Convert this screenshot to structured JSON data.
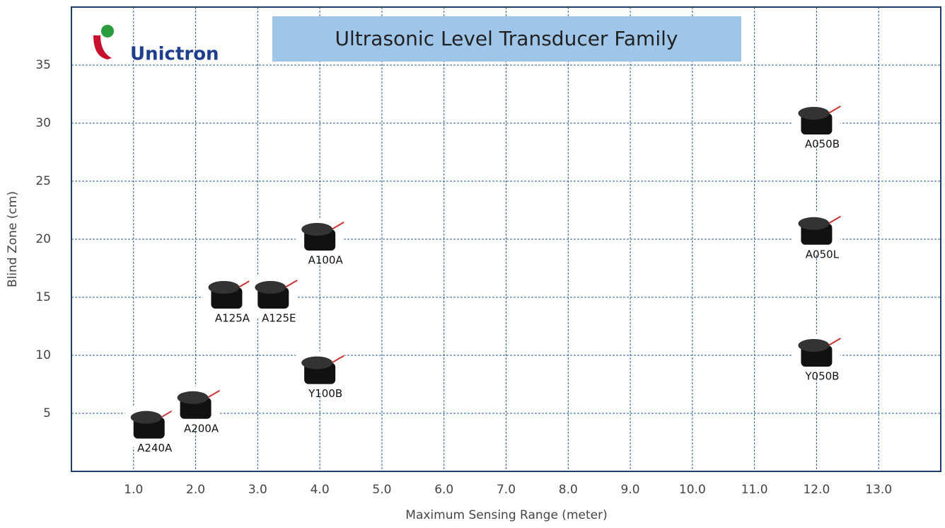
{
  "chart_data": {
    "type": "scatter",
    "title": "Ultrasonic Level Transducer Family",
    "logo": "Unictron",
    "x_label": "Maximum Sensing Range (meter)",
    "y_label": "Blind Zone (cm)",
    "xlim": [
      0,
      14
    ],
    "ylim": [
      0,
      40
    ],
    "xticks": [
      {
        "value": 1,
        "label": "1.0"
      },
      {
        "value": 2,
        "label": "2.0"
      },
      {
        "value": 3,
        "label": "3.0"
      },
      {
        "value": 4,
        "label": "4.0"
      },
      {
        "value": 5,
        "label": "5.0"
      },
      {
        "value": 6,
        "label": "6.0"
      },
      {
        "value": 7,
        "label": "7.0"
      },
      {
        "value": 8,
        "label": "8.0"
      },
      {
        "value": 9,
        "label": "9.0"
      },
      {
        "value": 10,
        "label": "10.0"
      },
      {
        "value": 11,
        "label": "11.0"
      },
      {
        "value": 12,
        "label": "12.0"
      },
      {
        "value": 13,
        "label": "13.0"
      }
    ],
    "yticks": [
      5,
      10,
      15,
      20,
      25,
      30,
      35
    ],
    "grid": true,
    "color": "#111111",
    "labels": [
      "A240A",
      "A200A",
      "A125A",
      "A125E",
      "A100A",
      "Y100B",
      "A050B",
      "A050L",
      "Y050B"
    ],
    "x": [
      1.25,
      2,
      2.5,
      3.25,
      4,
      4,
      12,
      12,
      12
    ],
    "y": [
      3.8,
      5.5,
      15,
      15,
      20,
      8.5,
      30,
      20.5,
      10
    ]
  }
}
